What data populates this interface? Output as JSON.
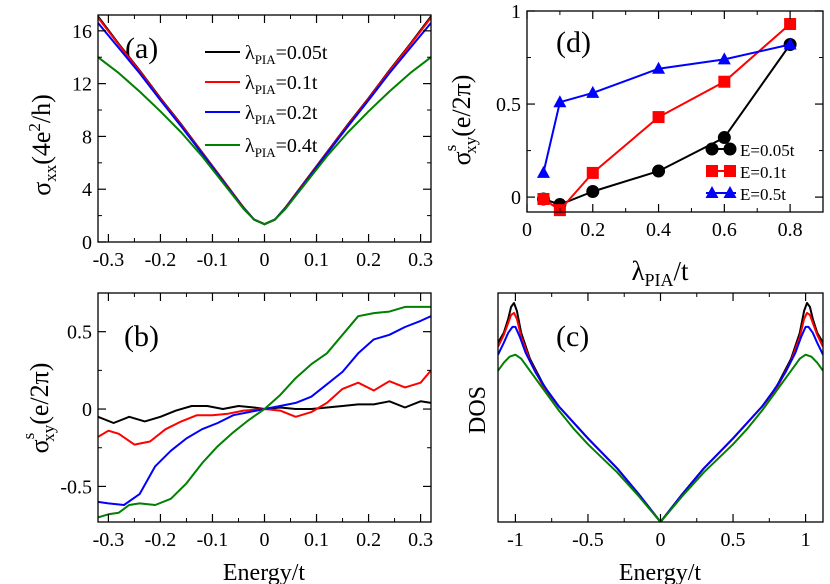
{
  "chart_data": [
    {
      "id": "a",
      "type": "line",
      "panel_label": "(a)",
      "xlabel": "",
      "ylabel_main": "σ",
      "ylabel_sub": "xx",
      "ylabel_tail": "(4e",
      "ylabel_sup": "2",
      "ylabel_end": "/h)",
      "xlim": [
        -0.32,
        0.32
      ],
      "ylim": [
        0,
        17.2
      ],
      "xticks": [
        -0.3,
        -0.2,
        -0.1,
        0,
        0.1,
        0.2,
        0.3
      ],
      "xticklabels": [
        "-0.3",
        "-0.2",
        "-0.1",
        "0",
        "0.1",
        "0.2",
        "0.3"
      ],
      "yticks": [
        0,
        4,
        8,
        12,
        16
      ],
      "yticklabels": [
        "0",
        "4",
        "8",
        "12",
        "16"
      ],
      "legend_position": "top-right",
      "series": [
        {
          "name": "λPIA=0.05t",
          "legend_main": "λ",
          "legend_sub": "PIA",
          "legend_tail": "=0.05t",
          "color": "#000000",
          "x": [
            -0.32,
            -0.28,
            -0.24,
            -0.2,
            -0.16,
            -0.12,
            -0.08,
            -0.04,
            -0.02,
            0,
            0.02,
            0.04,
            0.08,
            0.12,
            0.16,
            0.2,
            0.24,
            0.28,
            0.32
          ],
          "y": [
            17.1,
            15.0,
            13.0,
            10.9,
            8.9,
            6.8,
            4.7,
            2.6,
            1.7,
            1.35,
            1.7,
            2.6,
            4.7,
            6.8,
            8.9,
            10.9,
            13.0,
            15.0,
            17.1
          ]
        },
        {
          "name": "λPIA=0.1t",
          "legend_main": "λ",
          "legend_sub": "PIA",
          "legend_tail": "=0.1t",
          "color": "#ff0000",
          "x": [
            -0.32,
            -0.28,
            -0.24,
            -0.2,
            -0.16,
            -0.12,
            -0.08,
            -0.04,
            -0.02,
            0,
            0.02,
            0.04,
            0.08,
            0.12,
            0.16,
            0.2,
            0.24,
            0.28,
            0.32
          ],
          "y": [
            17.0,
            14.95,
            12.95,
            10.85,
            8.85,
            6.75,
            4.65,
            2.6,
            1.7,
            1.35,
            1.7,
            2.6,
            4.65,
            6.75,
            8.85,
            10.85,
            12.95,
            14.95,
            17.0
          ]
        },
        {
          "name": "λPIA=0.2t",
          "legend_main": "λ",
          "legend_sub": "PIA",
          "legend_tail": "=0.2t",
          "color": "#0000ff",
          "x": [
            -0.32,
            -0.28,
            -0.24,
            -0.2,
            -0.16,
            -0.12,
            -0.08,
            -0.04,
            -0.02,
            0,
            0.02,
            0.04,
            0.08,
            0.12,
            0.16,
            0.2,
            0.24,
            0.28,
            0.32
          ],
          "y": [
            16.6,
            14.7,
            12.8,
            10.75,
            8.75,
            6.7,
            4.6,
            2.55,
            1.7,
            1.35,
            1.7,
            2.55,
            4.6,
            6.7,
            8.75,
            10.75,
            12.8,
            14.7,
            16.6
          ]
        },
        {
          "name": "λPIA=0.4t",
          "legend_main": "λ",
          "legend_sub": "PIA",
          "legend_tail": "=0.4t",
          "color": "#008000",
          "x": [
            -0.32,
            -0.28,
            -0.24,
            -0.2,
            -0.16,
            -0.12,
            -0.08,
            -0.04,
            -0.02,
            0,
            0.02,
            0.04,
            0.08,
            0.12,
            0.16,
            0.2,
            0.24,
            0.28,
            0.32
          ],
          "y": [
            14.0,
            12.8,
            11.4,
            9.9,
            8.3,
            6.5,
            4.5,
            2.5,
            1.7,
            1.35,
            1.7,
            2.5,
            4.5,
            6.5,
            8.3,
            9.9,
            11.4,
            12.8,
            14.0
          ]
        }
      ]
    },
    {
      "id": "d",
      "type": "line",
      "panel_label": "(d)",
      "xlabel_main": "λ",
      "xlabel_sub": "PIA",
      "xlabel_tail": "/t",
      "ylabel_main": "σ",
      "ylabel_sup": "s",
      "ylabel_sub": "xy",
      "ylabel_tail": "(e/2π)",
      "xlim": [
        0,
        0.9
      ],
      "ylim": [
        -0.08,
        1.0
      ],
      "xticks": [
        0,
        0.2,
        0.4,
        0.6,
        0.8
      ],
      "xticklabels": [
        "0",
        "0.2",
        "0.4",
        "0.6",
        "0.8"
      ],
      "yticks": [
        0,
        0.5,
        1
      ],
      "yticklabels": [
        "0",
        "0.5",
        "1"
      ],
      "legend_position": "bottom-right",
      "series": [
        {
          "name": "E=0.05t",
          "color": "#000000",
          "marker": "circle",
          "x": [
            0.05,
            0.1,
            0.2,
            0.4,
            0.6,
            0.8
          ],
          "y": [
            -0.01,
            -0.04,
            0.03,
            0.14,
            0.32,
            0.82
          ]
        },
        {
          "name": "E=0.1t",
          "color": "#ff0000",
          "marker": "square",
          "x": [
            0.05,
            0.1,
            0.2,
            0.4,
            0.6,
            0.8
          ],
          "y": [
            -0.01,
            -0.07,
            0.13,
            0.43,
            0.62,
            0.93
          ]
        },
        {
          "name": "E=0.5t",
          "color": "#0000ff",
          "marker": "triangle",
          "x": [
            0.05,
            0.1,
            0.2,
            0.4,
            0.6,
            0.8
          ],
          "y": [
            0.13,
            0.51,
            0.56,
            0.69,
            0.74,
            0.82
          ]
        }
      ]
    },
    {
      "id": "b",
      "type": "line",
      "panel_label": "(b)",
      "xlabel": "Energy/t",
      "ylabel_main": "σ",
      "ylabel_sup": "s",
      "ylabel_sub": "xy",
      "ylabel_tail": "(e/2π)",
      "xlim": [
        -0.32,
        0.32
      ],
      "ylim": [
        -0.73,
        0.75
      ],
      "xticks": [
        -0.3,
        -0.2,
        -0.1,
        0,
        0.1,
        0.2,
        0.3
      ],
      "xticklabels": [
        "-0.3",
        "-0.2",
        "-0.1",
        "0",
        "0.1",
        "0.2",
        "0.3"
      ],
      "yticks": [
        -0.5,
        0,
        0.5
      ],
      "yticklabels": [
        "-0.5",
        "0",
        "0.5"
      ],
      "series": [
        {
          "name": "λPIA=0.05t",
          "color": "#000000",
          "x": [
            -0.32,
            -0.29,
            -0.26,
            -0.23,
            -0.2,
            -0.17,
            -0.14,
            -0.11,
            -0.08,
            -0.05,
            -0.02,
            0,
            0.03,
            0.06,
            0.09,
            0.12,
            0.15,
            0.18,
            0.21,
            0.24,
            0.27,
            0.3,
            0.32
          ],
          "y": [
            -0.05,
            -0.09,
            -0.05,
            -0.08,
            -0.05,
            -0.01,
            0.02,
            0.02,
            0.0,
            0.02,
            0.01,
            0.0,
            0.01,
            0.0,
            0.0,
            0.01,
            0.02,
            0.03,
            0.03,
            0.05,
            0.01,
            0.05,
            0.04
          ]
        },
        {
          "name": "λPIA=0.1t",
          "color": "#ff0000",
          "x": [
            -0.32,
            -0.3,
            -0.28,
            -0.25,
            -0.22,
            -0.19,
            -0.16,
            -0.13,
            -0.1,
            -0.07,
            -0.04,
            0,
            0.03,
            0.06,
            0.09,
            0.12,
            0.15,
            0.18,
            0.21,
            0.24,
            0.27,
            0.3,
            0.32
          ],
          "y": [
            -0.18,
            -0.14,
            -0.16,
            -0.23,
            -0.21,
            -0.13,
            -0.08,
            -0.04,
            -0.04,
            -0.03,
            -0.01,
            0.0,
            -0.01,
            -0.05,
            -0.02,
            0.04,
            0.13,
            0.17,
            0.12,
            0.18,
            0.14,
            0.17,
            0.25
          ]
        },
        {
          "name": "λPIA=0.2t",
          "color": "#0000ff",
          "x": [
            -0.32,
            -0.3,
            -0.27,
            -0.24,
            -0.21,
            -0.18,
            -0.15,
            -0.12,
            -0.09,
            -0.06,
            -0.03,
            0,
            0.03,
            0.06,
            0.09,
            0.12,
            0.15,
            0.18,
            0.21,
            0.24,
            0.27,
            0.3,
            0.32
          ],
          "y": [
            -0.6,
            -0.61,
            -0.62,
            -0.55,
            -0.37,
            -0.27,
            -0.19,
            -0.13,
            -0.09,
            -0.04,
            -0.02,
            0.0,
            0.02,
            0.04,
            0.08,
            0.16,
            0.24,
            0.36,
            0.45,
            0.48,
            0.53,
            0.57,
            0.6
          ]
        },
        {
          "name": "λPIA=0.4t",
          "color": "#008000",
          "x": [
            -0.32,
            -0.3,
            -0.28,
            -0.26,
            -0.24,
            -0.21,
            -0.18,
            -0.15,
            -0.12,
            -0.09,
            -0.06,
            -0.03,
            0,
            0.03,
            0.06,
            0.09,
            0.12,
            0.15,
            0.18,
            0.21,
            0.24,
            0.27,
            0.3,
            0.32
          ],
          "y": [
            -0.7,
            -0.68,
            -0.67,
            -0.62,
            -0.61,
            -0.62,
            -0.58,
            -0.48,
            -0.35,
            -0.24,
            -0.15,
            -0.07,
            0.0,
            0.09,
            0.2,
            0.29,
            0.36,
            0.48,
            0.6,
            0.62,
            0.63,
            0.66,
            0.66,
            0.66
          ]
        }
      ]
    },
    {
      "id": "c",
      "type": "line",
      "panel_label": "(c)",
      "xlabel": "Energy/t",
      "ylabel": "DOS",
      "xlim": [
        -1.12,
        1.12
      ],
      "ylim": [
        0,
        1.15
      ],
      "xticks": [
        -1,
        -0.5,
        0,
        0.5,
        1
      ],
      "xticklabels": [
        "-1",
        "-0.5",
        "0",
        "0.5",
        "1"
      ],
      "series": [
        {
          "name": "λPIA=0.05t",
          "color": "#000000",
          "x": [
            -1.12,
            -1.08,
            -1.05,
            -1.03,
            -1.01,
            -0.99,
            -0.96,
            -0.9,
            -0.8,
            -0.7,
            -0.5,
            -0.3,
            -0.15,
            0,
            0.15,
            0.3,
            0.5,
            0.7,
            0.8,
            0.9,
            0.96,
            0.99,
            1.01,
            1.03,
            1.05,
            1.08,
            1.12
          ],
          "y": [
            0.9,
            0.95,
            1.02,
            1.08,
            1.1,
            1.06,
            0.95,
            0.82,
            0.68,
            0.58,
            0.42,
            0.27,
            0.14,
            0.0,
            0.14,
            0.27,
            0.42,
            0.58,
            0.68,
            0.82,
            0.95,
            1.06,
            1.1,
            1.08,
            1.02,
            0.95,
            0.9
          ]
        },
        {
          "name": "λPIA=0.1t",
          "color": "#ff0000",
          "x": [
            -1.12,
            -1.08,
            -1.05,
            -1.03,
            -1.01,
            -0.99,
            -0.96,
            -0.9,
            -0.8,
            -0.7,
            -0.5,
            -0.3,
            -0.15,
            0,
            0.15,
            0.3,
            0.5,
            0.7,
            0.8,
            0.9,
            0.96,
            0.99,
            1.01,
            1.03,
            1.05,
            1.08,
            1.12
          ],
          "y": [
            0.88,
            0.94,
            1.0,
            1.04,
            1.05,
            1.02,
            0.93,
            0.81,
            0.67,
            0.58,
            0.42,
            0.27,
            0.14,
            0.0,
            0.14,
            0.27,
            0.42,
            0.58,
            0.67,
            0.81,
            0.93,
            1.02,
            1.05,
            1.04,
            1.0,
            0.94,
            0.88
          ]
        },
        {
          "name": "λPIA=0.2t",
          "color": "#0000ff",
          "x": [
            -1.12,
            -1.08,
            -1.05,
            -1.02,
            -1.0,
            -0.97,
            -0.93,
            -0.86,
            -0.78,
            -0.7,
            -0.5,
            -0.3,
            -0.15,
            0,
            0.15,
            0.3,
            0.5,
            0.7,
            0.78,
            0.86,
            0.93,
            0.97,
            1.0,
            1.02,
            1.05,
            1.08,
            1.12
          ],
          "y": [
            0.84,
            0.9,
            0.95,
            0.98,
            0.98,
            0.93,
            0.85,
            0.75,
            0.66,
            0.58,
            0.42,
            0.27,
            0.14,
            0.0,
            0.14,
            0.27,
            0.42,
            0.58,
            0.66,
            0.75,
            0.85,
            0.93,
            0.98,
            0.98,
            0.95,
            0.9,
            0.84
          ]
        },
        {
          "name": "λPIA=0.4t",
          "color": "#008000",
          "x": [
            -1.12,
            -1.08,
            -1.04,
            -1.0,
            -0.96,
            -0.9,
            -0.8,
            -0.7,
            -0.6,
            -0.5,
            -0.3,
            -0.15,
            0,
            0.15,
            0.3,
            0.5,
            0.6,
            0.7,
            0.8,
            0.9,
            0.96,
            1.0,
            1.04,
            1.08,
            1.12
          ],
          "y": [
            0.76,
            0.8,
            0.83,
            0.84,
            0.82,
            0.76,
            0.66,
            0.56,
            0.47,
            0.39,
            0.25,
            0.13,
            0.0,
            0.13,
            0.25,
            0.39,
            0.47,
            0.56,
            0.66,
            0.76,
            0.82,
            0.84,
            0.83,
            0.8,
            0.76
          ]
        }
      ]
    }
  ]
}
